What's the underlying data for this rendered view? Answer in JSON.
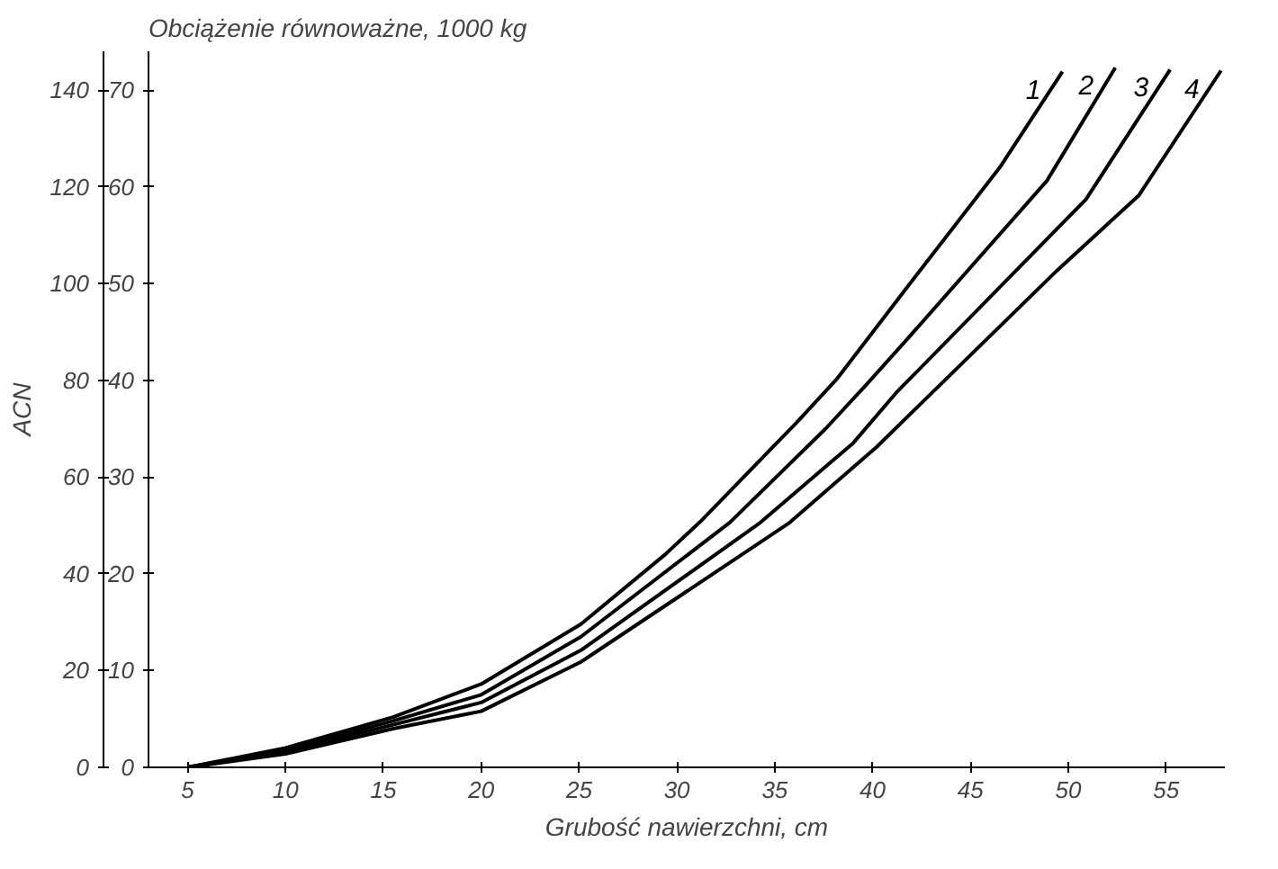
{
  "chart_data": {
    "type": "line",
    "xlabel": "Grubość nawierzchni, cm",
    "ylabel": "Obciążenie równoważne, 1000 kg",
    "y2label": "ACN",
    "xlim": [
      3,
      58
    ],
    "xticks": [
      5,
      10,
      15,
      20,
      25,
      30,
      35,
      40,
      45,
      50,
      55
    ],
    "ylim": [
      0,
      74
    ],
    "yticks": [
      0,
      10,
      20,
      30,
      40,
      50,
      60,
      70
    ],
    "y2lim": [
      0,
      148
    ],
    "y2ticks": [
      0,
      20,
      40,
      60,
      80,
      100,
      120,
      140
    ],
    "grid": false,
    "series": [
      {
        "name": "1",
        "color": "#000000",
        "x": [
          5,
          10,
          15.5,
          20,
          25.1,
          29.4,
          31.2,
          36.1,
          38.2,
          42.1,
          46.5,
          49.7
        ],
        "values": [
          0,
          2.0,
          5.2,
          8.6,
          14.8,
          22.0,
          25.4,
          35.6,
          40.2,
          50.5,
          62.0,
          71.9
        ]
      },
      {
        "name": "2",
        "color": "#000000",
        "x": [
          5,
          10,
          15.5,
          20,
          25.1,
          32.7,
          37.6,
          39.7,
          41.7,
          48.9,
          52.4
        ],
        "values": [
          0,
          1.8,
          4.8,
          7.5,
          13.5,
          25.3,
          35.0,
          39.6,
          44.1,
          60.6,
          72.3
        ]
      },
      {
        "name": "3",
        "color": "#000000",
        "x": [
          5,
          10,
          15.5,
          20,
          25.1,
          34.2,
          39.0,
          41.2,
          50.9,
          55.2
        ],
        "values": [
          0,
          1.6,
          4.4,
          6.7,
          12.1,
          25.2,
          33.5,
          38.7,
          58.7,
          72.1
        ]
      },
      {
        "name": "4",
        "color": "#000000",
        "x": [
          5,
          10,
          15.5,
          20,
          25.1,
          35.7,
          40.2,
          49.4,
          53.6,
          57.8
        ],
        "values": [
          0,
          1.4,
          4.0,
          5.8,
          10.9,
          25.2,
          33.1,
          51.3,
          59.1,
          72.0
        ]
      }
    ]
  }
}
